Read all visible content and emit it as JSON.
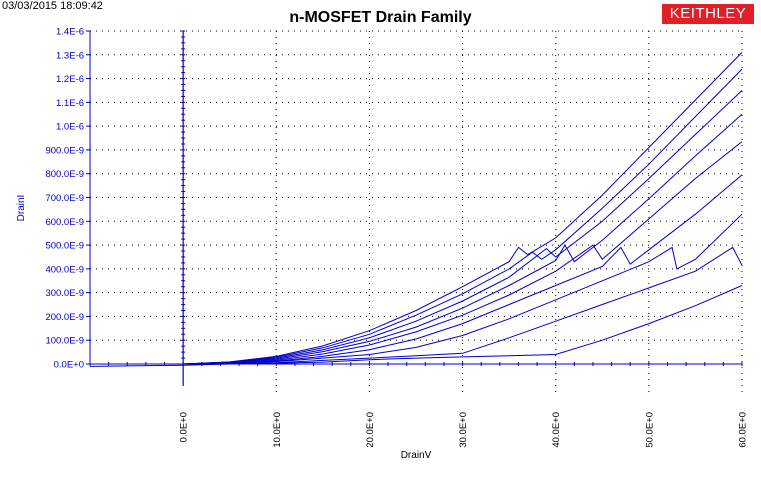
{
  "header": {
    "timestamp": "03/03/2015 18:09:42",
    "brand_label": "KEITHLEY",
    "brand_color": "#e01f26"
  },
  "chart_data": {
    "type": "line",
    "title": "n-MOSFET Drain Family",
    "xlabel": "DrainV",
    "ylabel": "DrainI",
    "xlim": [
      -10,
      60
    ],
    "ylim": [
      0,
      1.4e-06
    ],
    "grid": true,
    "line_color": "#0000cc",
    "x_ticks": [
      {
        "value": 0,
        "label": "0.0E+0"
      },
      {
        "value": 10,
        "label": "10.0E+0"
      },
      {
        "value": 20,
        "label": "20.0E+0"
      },
      {
        "value": 30,
        "label": "30.0E+0"
      },
      {
        "value": 40,
        "label": "40.0E+0"
      },
      {
        "value": 50,
        "label": "50.0E+0"
      },
      {
        "value": 60,
        "label": "60.0E+0"
      }
    ],
    "y_ticks": [
      {
        "value": 0,
        "label": "0.0E+0"
      },
      {
        "value": 1e-07,
        "label": "100.0E-9"
      },
      {
        "value": 2e-07,
        "label": "200.0E-9"
      },
      {
        "value": 3e-07,
        "label": "300.0E-9"
      },
      {
        "value": 4e-07,
        "label": "400.0E-9"
      },
      {
        "value": 5e-07,
        "label": "500.0E-9"
      },
      {
        "value": 6e-07,
        "label": "600.0E-9"
      },
      {
        "value": 7e-07,
        "label": "700.0E-9"
      },
      {
        "value": 8e-07,
        "label": "800.0E-9"
      },
      {
        "value": 9e-07,
        "label": "900.0E-9"
      },
      {
        "value": 1e-06,
        "label": "1.0E-6"
      },
      {
        "value": 1.1e-06,
        "label": "1.1E-6"
      },
      {
        "value": 1.2e-06,
        "label": "1.2E-6"
      },
      {
        "value": 1.3e-06,
        "label": "1.3E-6"
      },
      {
        "value": 1.4e-06,
        "label": "1.4E-6"
      }
    ],
    "series": [
      {
        "points": [
          [
            -10,
            -1e-08
          ],
          [
            0,
            -5e-09
          ],
          [
            5,
            0
          ],
          [
            10,
            3e-09
          ],
          [
            15,
            8e-09
          ],
          [
            20,
            1.8e-08
          ],
          [
            25,
            2.5e-08
          ],
          [
            30,
            3e-08
          ],
          [
            35,
            3.5e-08
          ],
          [
            40,
            4e-08
          ],
          [
            45,
            1e-07
          ],
          [
            50,
            1.7e-07
          ],
          [
            55,
            2.45e-07
          ],
          [
            60,
            3.3e-07
          ]
        ]
      },
      {
        "points": [
          [
            0,
            0
          ],
          [
            5,
            2e-09
          ],
          [
            10,
            5e-09
          ],
          [
            15,
            1.5e-08
          ],
          [
            20,
            2.5e-08
          ],
          [
            25,
            3.5e-08
          ],
          [
            30,
            4.5e-08
          ],
          [
            35,
            1.1e-07
          ],
          [
            40,
            1.8e-07
          ],
          [
            45,
            2.5e-07
          ],
          [
            50,
            3.2e-07
          ],
          [
            55,
            3.9e-07
          ],
          [
            59,
            4.9e-07
          ],
          [
            60,
            4.15e-07
          ]
        ]
      },
      {
        "points": [
          [
            0,
            0
          ],
          [
            5,
            3e-09
          ],
          [
            10,
            1e-08
          ],
          [
            15,
            2.5e-08
          ],
          [
            20,
            4e-08
          ],
          [
            25,
            7e-08
          ],
          [
            30,
            1.2e-07
          ],
          [
            35,
            1.9e-07
          ],
          [
            40,
            2.7e-07
          ],
          [
            45,
            3.5e-07
          ],
          [
            50,
            4.3e-07
          ],
          [
            52.5,
            4.9e-07
          ],
          [
            53,
            4e-07
          ],
          [
            55,
            4.4e-07
          ],
          [
            60,
            6.3e-07
          ]
        ]
      },
      {
        "points": [
          [
            0,
            0
          ],
          [
            5,
            4e-09
          ],
          [
            10,
            1.2e-08
          ],
          [
            15,
            3.2e-08
          ],
          [
            20,
            6e-08
          ],
          [
            25,
            1.05e-07
          ],
          [
            30,
            1.7e-07
          ],
          [
            35,
            2.5e-07
          ],
          [
            40,
            3.3e-07
          ],
          [
            45,
            4.1e-07
          ],
          [
            47,
            4.9e-07
          ],
          [
            48,
            4.2e-07
          ],
          [
            50,
            4.8e-07
          ],
          [
            55,
            6.3e-07
          ],
          [
            60,
            7.95e-07
          ]
        ]
      },
      {
        "points": [
          [
            0,
            0
          ],
          [
            5,
            5e-09
          ],
          [
            10,
            1.6e-08
          ],
          [
            15,
            4.2e-08
          ],
          [
            20,
            8e-08
          ],
          [
            25,
            1.35e-07
          ],
          [
            30,
            2.05e-07
          ],
          [
            35,
            2.9e-07
          ],
          [
            40,
            3.9e-07
          ],
          [
            44,
            5e-07
          ],
          [
            45,
            4.4e-07
          ],
          [
            50,
            6.1e-07
          ],
          [
            55,
            7.8e-07
          ],
          [
            60,
            9.35e-07
          ]
        ]
      },
      {
        "points": [
          [
            0,
            0
          ],
          [
            5,
            6e-09
          ],
          [
            10,
            2e-08
          ],
          [
            15,
            5.2e-08
          ],
          [
            20,
            9.5e-08
          ],
          [
            25,
            1.55e-07
          ],
          [
            30,
            2.35e-07
          ],
          [
            35,
            3.3e-07
          ],
          [
            40,
            4.35e-07
          ],
          [
            41,
            5e-07
          ],
          [
            42,
            4.3e-07
          ],
          [
            45,
            5.2e-07
          ],
          [
            50,
            6.95e-07
          ],
          [
            55,
            8.75e-07
          ],
          [
            60,
            1.05e-06
          ]
        ]
      },
      {
        "points": [
          [
            0,
            0
          ],
          [
            5,
            7e-09
          ],
          [
            10,
            2.4e-08
          ],
          [
            15,
            6e-08
          ],
          [
            20,
            1.1e-07
          ],
          [
            25,
            1.8e-07
          ],
          [
            30,
            2.65e-07
          ],
          [
            35,
            3.65e-07
          ],
          [
            39,
            4.85e-07
          ],
          [
            40,
            4.5e-07
          ],
          [
            45,
            6e-07
          ],
          [
            50,
            7.8e-07
          ],
          [
            55,
            9.65e-07
          ],
          [
            60,
            1.15e-06
          ]
        ]
      },
      {
        "points": [
          [
            0,
            0
          ],
          [
            5,
            8e-09
          ],
          [
            10,
            2.8e-08
          ],
          [
            15,
            6.8e-08
          ],
          [
            20,
            1.25e-07
          ],
          [
            25,
            2.05e-07
          ],
          [
            30,
            2.95e-07
          ],
          [
            35,
            4e-07
          ],
          [
            37.5,
            4.7e-07
          ],
          [
            38.5,
            4.4e-07
          ],
          [
            40,
            4.8e-07
          ],
          [
            45,
            6.55e-07
          ],
          [
            50,
            8.4e-07
          ],
          [
            55,
            1.04e-06
          ],
          [
            60,
            1.24e-06
          ]
        ]
      },
      {
        "points": [
          [
            0,
            0
          ],
          [
            5,
            9e-09
          ],
          [
            10,
            3.2e-08
          ],
          [
            15,
            7.6e-08
          ],
          [
            20,
            1.4e-07
          ],
          [
            25,
            2.25e-07
          ],
          [
            30,
            3.25e-07
          ],
          [
            35,
            4.3e-07
          ],
          [
            36,
            4.9e-07
          ],
          [
            37,
            4.6e-07
          ],
          [
            40,
            5.3e-07
          ],
          [
            45,
            7.1e-07
          ],
          [
            50,
            9.1e-07
          ],
          [
            55,
            1.11e-06
          ],
          [
            60,
            1.31e-06
          ]
        ]
      }
    ]
  }
}
